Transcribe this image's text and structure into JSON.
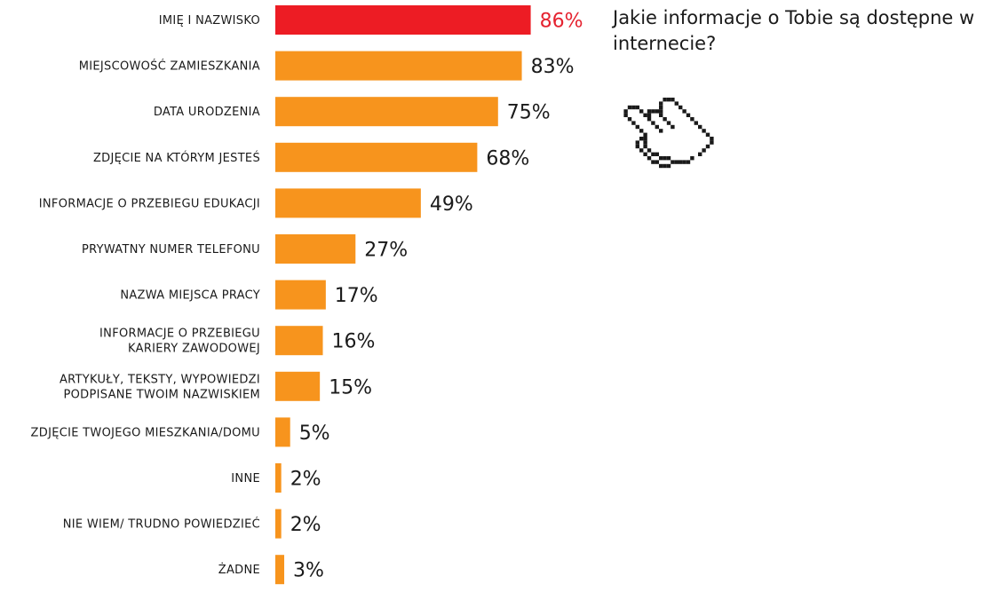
{
  "title": "Jakie informacje o Tobie są dostępne w internecie?",
  "icon": "pixel-hand-pointer-icon",
  "colors": {
    "highlight": "#ed1c24",
    "bar": "#f7941d"
  },
  "chart_data": {
    "type": "bar",
    "orientation": "horizontal",
    "title": "Jakie informacje o Tobie są dostępne w internecie?",
    "categories": [
      "IMIĘ I NAZWISKO",
      "MIEJSCOWOŚĆ ZAMIESZKANIA",
      "DATA URODZENIA",
      "ZDJĘCIE NA KTÓRYM JESTEŚ",
      "INFORMACJE O PRZEBIEGU EDUKACJI",
      "PRYWATNY NUMER TELEFONU",
      "NAZWA MIEJSCA PRACY",
      "INFORMACJE O PRZEBIEGU KARIERY ZAWODOWEJ",
      "ARTYKUŁY, TEKSTY, WYPOWIEDZI PODPISANE TWOIM NAZWISKIEM",
      "ZDJĘCIE TWOJEGO MIESZKANIA/DOMU",
      "INNE",
      "NIE WIEM/ TRUDNO POWIEDZIEĆ",
      "ŻADNE"
    ],
    "category_lines": [
      [
        "IMIĘ I NAZWISKO"
      ],
      [
        "MIEJSCOWOŚĆ ZAMIESZKANIA"
      ],
      [
        "DATA URODZENIA"
      ],
      [
        "ZDJĘCIE NA KTÓRYM JESTEŚ"
      ],
      [
        "INFORMACJE O PRZEBIEGU EDUKACJI"
      ],
      [
        "PRYWATNY NUMER TELEFONU"
      ],
      [
        "NAZWA MIEJSCA PRACY"
      ],
      [
        "INFORMACJE O PRZEBIEGU",
        "KARIERY ZAWODOWEJ"
      ],
      [
        "ARTYKUŁY, TEKSTY, WYPOWIEDZI",
        "PODPISANE TWOIM NAZWISKIEM"
      ],
      [
        "ZDJĘCIE TWOJEGO MIESZKANIA/DOMU"
      ],
      [
        "INNE"
      ],
      [
        "NIE WIEM/ TRUDNO POWIEDZIEĆ"
      ],
      [
        "ŻADNE"
      ]
    ],
    "values": [
      86,
      83,
      75,
      68,
      49,
      27,
      17,
      16,
      15,
      5,
      2,
      2,
      3
    ],
    "value_labels": [
      "86%",
      "83%",
      "75%",
      "68%",
      "49%",
      "27%",
      "17%",
      "16%",
      "15%",
      "5%",
      "2%",
      "2%",
      "3%"
    ],
    "highlight_index": 0,
    "unit": "%",
    "xlim": [
      0,
      100
    ],
    "grid": false,
    "legend": "none"
  }
}
